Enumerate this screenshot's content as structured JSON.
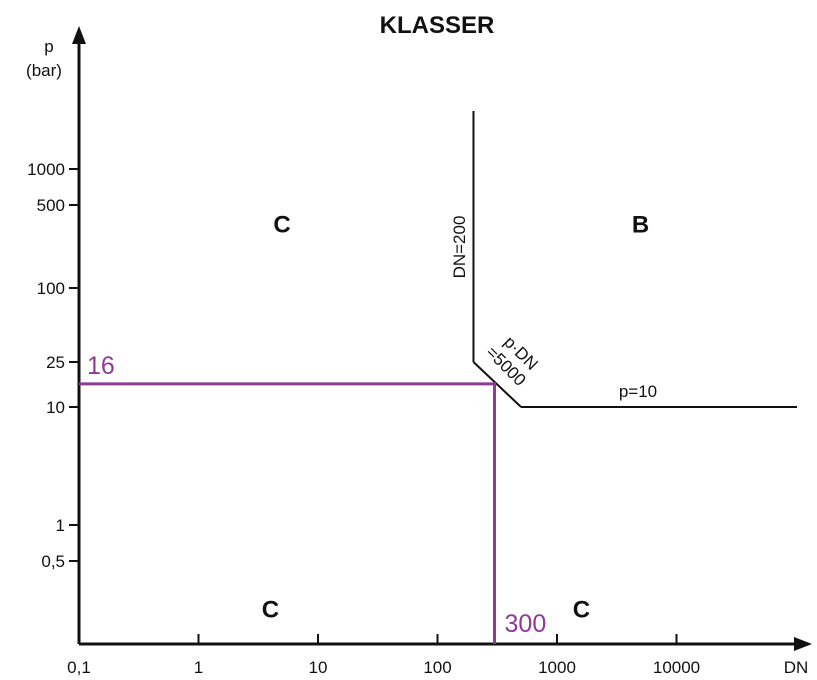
{
  "chart_data": {
    "type": "line",
    "title": "KLASSER",
    "xlabel": "DN",
    "ylabel_line1": "p",
    "ylabel_line2": "(bar)",
    "x_scale": "log",
    "y_scale": "log",
    "x_ticks": [
      {
        "value": 0.1,
        "label": "0,1"
      },
      {
        "value": 1,
        "label": "1"
      },
      {
        "value": 10,
        "label": "10"
      },
      {
        "value": 100,
        "label": "100"
      },
      {
        "value": 1000,
        "label": "1000"
      },
      {
        "value": 10000,
        "label": "10000"
      }
    ],
    "y_ticks": [
      {
        "value": 0.5,
        "label": "0,5"
      },
      {
        "value": 1,
        "label": "1"
      },
      {
        "value": 10,
        "label": "10"
      },
      {
        "value": 25,
        "label": "25"
      },
      {
        "value": 100,
        "label": "100"
      },
      {
        "value": 500,
        "label": "500"
      },
      {
        "value": 1000,
        "label": "1000"
      }
    ],
    "boundary": [
      {
        "x": 200,
        "y": 5000
      },
      {
        "x": 200,
        "y": 25
      },
      {
        "x": 500,
        "y": 10
      },
      {
        "x": 100000,
        "y": 10
      }
    ],
    "boundary_labels": [
      {
        "text": "DN=200"
      },
      {
        "text": "p·DN"
      },
      {
        "text": "=5000"
      },
      {
        "text": "p=10"
      }
    ],
    "regions": [
      {
        "label": "C",
        "x": 5,
        "y": 350
      },
      {
        "label": "B",
        "x": 5000,
        "y": 350
      },
      {
        "label": "C",
        "x": 4,
        "y": 0.2
      },
      {
        "label": "C",
        "x": 1600,
        "y": 0.2
      }
    ],
    "highlight": {
      "color": "#8e3a96",
      "p": 16,
      "p_label": "16",
      "dn": 300,
      "dn_label": "300"
    }
  }
}
